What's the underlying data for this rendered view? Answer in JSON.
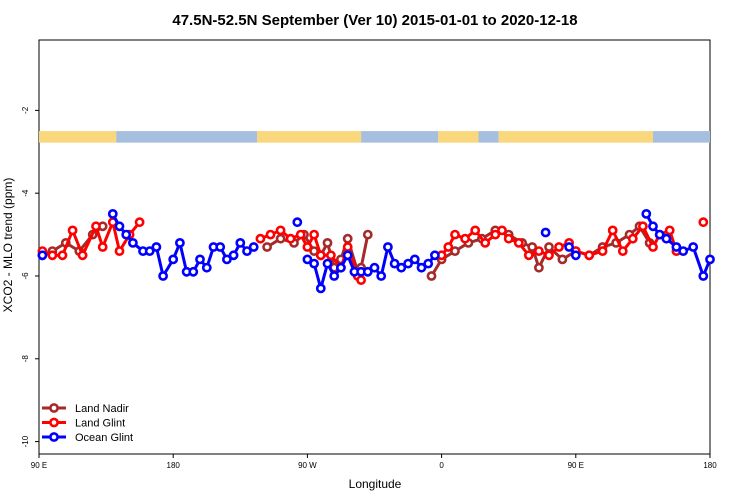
{
  "chart_data": {
    "type": "line",
    "title": "47.5N-52.5N September (Ver 10)   2015-01-01 to 2020-12-18",
    "xlabel": "Longitude",
    "ylabel": "XCO2 - MLO trend (ppm)",
    "xlim": [
      0,
      1.0
    ],
    "ylim": [
      -10.3,
      -0.3
    ],
    "x_ticks": [
      {
        "value": 0.0,
        "label": "90 E"
      },
      {
        "value": 0.2,
        "label": "180"
      },
      {
        "value": 0.4,
        "label": "90 W"
      },
      {
        "value": 0.6,
        "label": "0"
      },
      {
        "value": 0.8,
        "label": "90 E"
      },
      {
        "value": 1.0,
        "label": "180"
      }
    ],
    "y_ticks": [
      {
        "value": -2,
        "label": "-2"
      },
      {
        "value": -4,
        "label": "-4"
      },
      {
        "value": -6,
        "label": "-6"
      },
      {
        "value": -8,
        "label": "-8"
      },
      {
        "value": -10,
        "label": "-10"
      }
    ],
    "land_ocean_band": {
      "y_top": -2.5,
      "y_bottom": -2.78,
      "land_color": "#f9d77c",
      "ocean_color": "#a7bfde",
      "segments": [
        {
          "from": 0.0,
          "to": 0.115,
          "kind": "land"
        },
        {
          "from": 0.115,
          "to": 0.325,
          "kind": "ocean"
        },
        {
          "from": 0.325,
          "to": 0.48,
          "kind": "land"
        },
        {
          "from": 0.48,
          "to": 0.595,
          "kind": "ocean"
        },
        {
          "from": 0.595,
          "to": 0.655,
          "kind": "land"
        },
        {
          "from": 0.655,
          "to": 0.685,
          "kind": "ocean"
        },
        {
          "from": 0.685,
          "to": 0.915,
          "kind": "land"
        },
        {
          "from": 0.915,
          "to": 1.0,
          "kind": "ocean"
        }
      ]
    },
    "legend": {
      "position": "bottom-left",
      "entries": [
        {
          "label": "Land Nadir",
          "color": "#a52a2a"
        },
        {
          "label": "Land Glint",
          "color": "#ff0000"
        },
        {
          "label": "Ocean Glint",
          "color": "#0000ff"
        }
      ]
    },
    "series": [
      {
        "name": "Land Nadir",
        "color": "#a52a2a",
        "segments": [
          [
            [
              0.005,
              -5.5
            ],
            [
              0.02,
              -5.4
            ],
            [
              0.04,
              -5.2
            ],
            [
              0.06,
              -5.4
            ],
            [
              0.08,
              -5.0
            ],
            [
              0.095,
              -4.8
            ]
          ],
          [
            [
              0.34,
              -5.3
            ],
            [
              0.36,
              -5.1
            ],
            [
              0.38,
              -5.2
            ],
            [
              0.395,
              -5.0
            ],
            [
              0.41,
              -5.4
            ],
            [
              0.42,
              -5.5
            ],
            [
              0.43,
              -5.2
            ],
            [
              0.44,
              -5.8
            ],
            [
              0.45,
              -5.6
            ],
            [
              0.46,
              -5.1
            ],
            [
              0.475,
              -5.9
            ],
            [
              0.48,
              -5.8
            ],
            [
              0.49,
              -5.0
            ]
          ],
          [
            [
              0.585,
              -6.0
            ],
            [
              0.6,
              -5.6
            ],
            [
              0.62,
              -5.4
            ],
            [
              0.64,
              -5.2
            ],
            [
              0.66,
              -5.1
            ],
            [
              0.68,
              -4.9
            ],
            [
              0.7,
              -5.0
            ],
            [
              0.72,
              -5.2
            ],
            [
              0.735,
              -5.3
            ],
            [
              0.745,
              -5.8
            ],
            [
              0.76,
              -5.3
            ],
            [
              0.78,
              -5.6
            ],
            [
              0.8,
              -5.4
            ],
            [
              0.82,
              -5.5
            ],
            [
              0.84,
              -5.3
            ],
            [
              0.86,
              -5.2
            ],
            [
              0.88,
              -5.0
            ],
            [
              0.895,
              -4.8
            ],
            [
              0.91,
              -5.2
            ]
          ]
        ]
      },
      {
        "name": "Land Glint",
        "color": "#ff0000",
        "segments": [
          [
            [
              0.005,
              -5.4
            ],
            [
              0.02,
              -5.5
            ],
            [
              0.035,
              -5.5
            ],
            [
              0.05,
              -4.9
            ],
            [
              0.065,
              -5.5
            ],
            [
              0.085,
              -4.8
            ],
            [
              0.095,
              -5.3
            ],
            [
              0.11,
              -4.7
            ],
            [
              0.12,
              -5.4
            ],
            [
              0.135,
              -5.0
            ],
            [
              0.15,
              -4.7
            ]
          ],
          [
            [
              0.33,
              -5.1
            ],
            [
              0.345,
              -5.0
            ],
            [
              0.36,
              -4.9
            ],
            [
              0.375,
              -5.1
            ],
            [
              0.39,
              -5.0
            ],
            [
              0.4,
              -5.3
            ],
            [
              0.41,
              -5.0
            ],
            [
              0.42,
              -5.5
            ],
            [
              0.435,
              -5.5
            ],
            [
              0.45,
              -5.8
            ],
            [
              0.46,
              -5.3
            ],
            [
              0.475,
              -6.0
            ],
            [
              0.48,
              -6.1
            ]
          ],
          [
            [
              0.6,
              -5.5
            ],
            [
              0.61,
              -5.3
            ],
            [
              0.62,
              -5.0
            ],
            [
              0.635,
              -5.1
            ],
            [
              0.65,
              -4.9
            ],
            [
              0.665,
              -5.2
            ],
            [
              0.68,
              -5.0
            ],
            [
              0.69,
              -4.9
            ],
            [
              0.7,
              -5.1
            ],
            [
              0.715,
              -5.2
            ],
            [
              0.73,
              -5.5
            ],
            [
              0.745,
              -5.4
            ],
            [
              0.76,
              -5.5
            ],
            [
              0.775,
              -5.3
            ],
            [
              0.79,
              -5.2
            ],
            [
              0.8,
              -5.4
            ],
            [
              0.82,
              -5.5
            ],
            [
              0.84,
              -5.4
            ],
            [
              0.855,
              -4.9
            ],
            [
              0.87,
              -5.4
            ],
            [
              0.885,
              -5.1
            ],
            [
              0.9,
              -4.8
            ],
            [
              0.915,
              -5.3
            ],
            [
              0.925,
              -5.0
            ],
            [
              0.94,
              -4.9
            ],
            [
              0.95,
              -5.4
            ]
          ],
          [
            [
              0.99,
              -4.7
            ]
          ]
        ]
      },
      {
        "name": "Ocean Glint",
        "color": "#0000ff",
        "segments": [
          [
            [
              0.005,
              -5.5
            ]
          ],
          [
            [
              0.11,
              -4.5
            ],
            [
              0.12,
              -4.8
            ],
            [
              0.13,
              -5.0
            ],
            [
              0.14,
              -5.2
            ],
            [
              0.155,
              -5.4
            ],
            [
              0.165,
              -5.4
            ],
            [
              0.175,
              -5.3
            ],
            [
              0.185,
              -6.0
            ],
            [
              0.2,
              -5.6
            ],
            [
              0.21,
              -5.2
            ],
            [
              0.22,
              -5.9
            ],
            [
              0.23,
              -5.9
            ],
            [
              0.24,
              -5.6
            ],
            [
              0.25,
              -5.8
            ],
            [
              0.26,
              -5.3
            ],
            [
              0.27,
              -5.3
            ],
            [
              0.28,
              -5.6
            ],
            [
              0.29,
              -5.5
            ],
            [
              0.3,
              -5.2
            ],
            [
              0.31,
              -5.4
            ],
            [
              0.32,
              -5.3
            ]
          ],
          [
            [
              0.385,
              -4.7
            ]
          ],
          [
            [
              0.4,
              -5.6
            ],
            [
              0.41,
              -5.7
            ],
            [
              0.42,
              -6.3
            ],
            [
              0.43,
              -5.7
            ],
            [
              0.44,
              -6.0
            ],
            [
              0.45,
              -5.8
            ],
            [
              0.46,
              -5.5
            ],
            [
              0.47,
              -5.9
            ],
            [
              0.48,
              -5.9
            ],
            [
              0.49,
              -5.9
            ],
            [
              0.5,
              -5.8
            ],
            [
              0.51,
              -6.0
            ],
            [
              0.52,
              -5.3
            ],
            [
              0.53,
              -5.7
            ],
            [
              0.54,
              -5.8
            ],
            [
              0.55,
              -5.7
            ],
            [
              0.56,
              -5.6
            ],
            [
              0.57,
              -5.8
            ],
            [
              0.58,
              -5.7
            ],
            [
              0.59,
              -5.5
            ]
          ],
          [
            [
              0.755,
              -4.95
            ]
          ],
          [
            [
              0.79,
              -5.3
            ],
            [
              0.8,
              -5.5
            ]
          ],
          [
            [
              0.905,
              -4.5
            ],
            [
              0.915,
              -4.8
            ],
            [
              0.925,
              -5.0
            ],
            [
              0.935,
              -5.1
            ],
            [
              0.95,
              -5.3
            ],
            [
              0.96,
              -5.4
            ],
            [
              0.975,
              -5.3
            ],
            [
              0.99,
              -6.0
            ],
            [
              1.0,
              -5.6
            ]
          ]
        ]
      }
    ]
  }
}
